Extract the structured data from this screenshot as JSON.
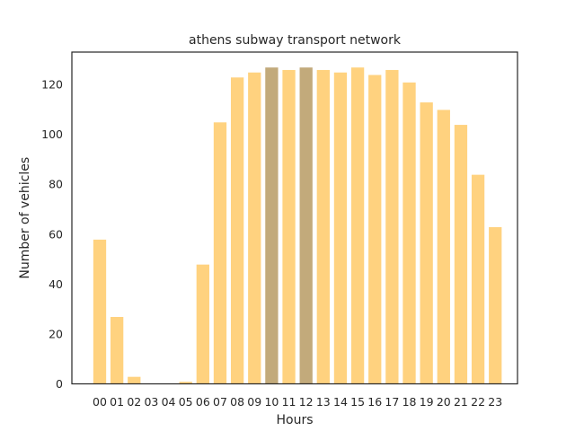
{
  "chart_data": {
    "type": "bar",
    "title": "athens subway transport network",
    "xlabel": "Hours",
    "ylabel": "Number of vehicles",
    "categories": [
      "00",
      "01",
      "02",
      "03",
      "04",
      "05",
      "06",
      "07",
      "08",
      "09",
      "10",
      "11",
      "12",
      "13",
      "14",
      "15",
      "16",
      "17",
      "18",
      "19",
      "20",
      "21",
      "22",
      "23"
    ],
    "values": [
      58,
      27,
      3,
      0,
      0,
      1,
      48,
      105,
      123,
      125,
      127,
      126,
      127,
      126,
      125,
      127,
      124,
      126,
      121,
      113,
      110,
      104,
      84,
      63
    ],
    "highlighted": [
      "10",
      "12"
    ],
    "ylim": [
      0,
      133
    ],
    "yticks": [
      0,
      20,
      40,
      60,
      80,
      100,
      120
    ],
    "grid": false,
    "colors": {
      "bar": "#ffd27f",
      "highlight": "#c2aa7b",
      "bar_edge": "#ffffff",
      "frame": "#262626"
    }
  }
}
